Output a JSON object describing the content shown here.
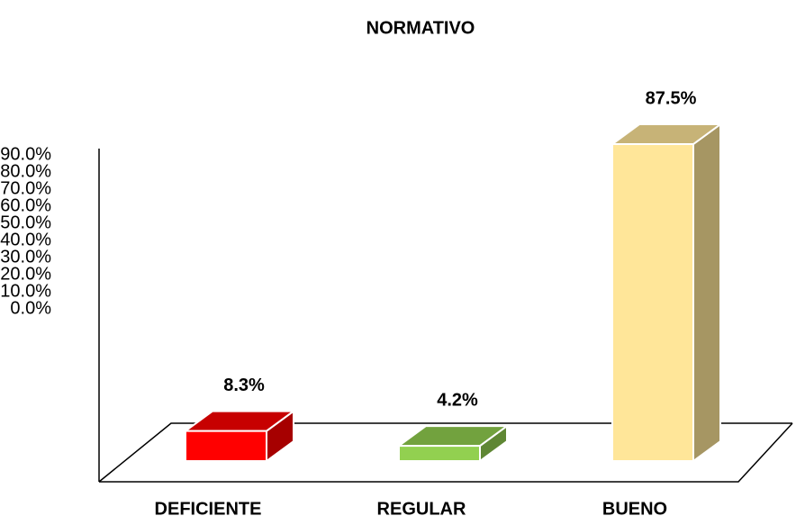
{
  "chart_data": {
    "type": "bar3d",
    "title": "NORMATIVO",
    "categories": [
      "DEFICIENTE",
      "REGULAR",
      "BUENO"
    ],
    "values": [
      8.3,
      4.2,
      87.5
    ],
    "value_labels": [
      "8.3%",
      "4.2%",
      "87.5%"
    ],
    "colors": [
      "#ff0000",
      "#92d050",
      "#ffe699"
    ],
    "ylim": [
      0,
      90
    ],
    "yticks": [
      {
        "value": 0,
        "label": "0.0%"
      },
      {
        "value": 10,
        "label": "10.0%"
      },
      {
        "value": 20,
        "label": "20.0%"
      },
      {
        "value": 30,
        "label": "30.0%"
      },
      {
        "value": 40,
        "label": "40.0%"
      },
      {
        "value": 50,
        "label": "50.0%"
      },
      {
        "value": 60,
        "label": "60.0%"
      },
      {
        "value": 70,
        "label": "70.0%"
      },
      {
        "value": 80,
        "label": "80.0%"
      },
      {
        "value": 90,
        "label": "90.0%"
      }
    ],
    "grid": false
  }
}
